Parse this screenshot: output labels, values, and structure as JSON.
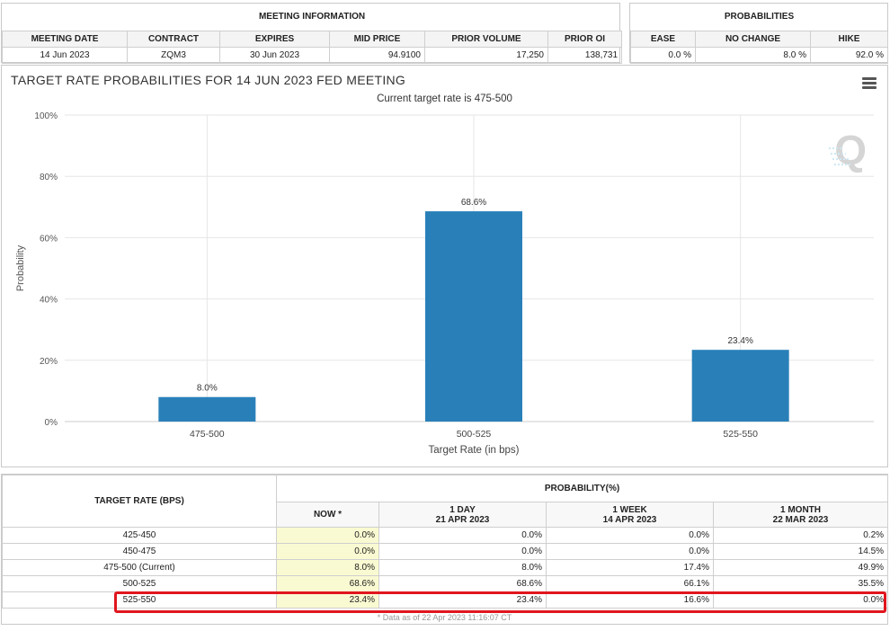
{
  "meeting_info": {
    "title": "MEETING INFORMATION",
    "columns": [
      "MEETING DATE",
      "CONTRACT",
      "EXPIRES",
      "MID PRICE",
      "PRIOR VOLUME",
      "PRIOR OI"
    ],
    "values": [
      "14 Jun 2023",
      "ZQM3",
      "30 Jun 2023",
      "94.9100",
      "17,250",
      "138,731"
    ]
  },
  "probabilities": {
    "title": "PROBABILITIES",
    "columns": [
      "EASE",
      "NO CHANGE",
      "HIKE"
    ],
    "values": [
      "0.0 %",
      "8.0 %",
      "92.0 %"
    ]
  },
  "chart": {
    "menu_icon": "hamburger-menu-icon",
    "watermark_icon": "q-logo-icon",
    "bar_color": "#2980b9"
  },
  "chart_data": {
    "type": "bar",
    "title": "TARGET RATE PROBABILITIES FOR 14 JUN 2023 FED MEETING",
    "subtitle": "Current target rate is 475-500",
    "xlabel": "Target Rate (in bps)",
    "ylabel": "Probability",
    "categories": [
      "475-500",
      "500-525",
      "525-550"
    ],
    "values": [
      8.0,
      68.6,
      23.4
    ],
    "value_labels": [
      "8.0%",
      "68.6%",
      "23.4%"
    ],
    "ylim": [
      0,
      100
    ],
    "yticks": [
      "0%",
      "20%",
      "40%",
      "60%",
      "80%",
      "100%"
    ],
    "grid": true
  },
  "prob_table": {
    "header_left": "TARGET RATE (BPS)",
    "header_group": "PROBABILITY(%)",
    "columns": [
      {
        "line1": "NOW *",
        "line2": ""
      },
      {
        "line1": "1 DAY",
        "line2": "21 APR 2023"
      },
      {
        "line1": "1 WEEK",
        "line2": "14 APR 2023"
      },
      {
        "line1": "1 MONTH",
        "line2": "22 MAR 2023"
      }
    ],
    "rows": [
      {
        "rate": "425-450",
        "values": [
          "0.0%",
          "0.0%",
          "0.0%",
          "0.2%"
        ]
      },
      {
        "rate": "450-475",
        "values": [
          "0.0%",
          "0.0%",
          "0.0%",
          "14.5%"
        ]
      },
      {
        "rate": "475-500 (Current)",
        "values": [
          "8.0%",
          "8.0%",
          "17.4%",
          "49.9%"
        ]
      },
      {
        "rate": "500-525",
        "values": [
          "68.6%",
          "68.6%",
          "66.1%",
          "35.5%"
        ]
      },
      {
        "rate": "525-550",
        "values": [
          "23.4%",
          "23.4%",
          "16.6%",
          "0.0%"
        ]
      }
    ],
    "footer": "* Data as of 22 Apr 2023 11:16:07 CT"
  }
}
